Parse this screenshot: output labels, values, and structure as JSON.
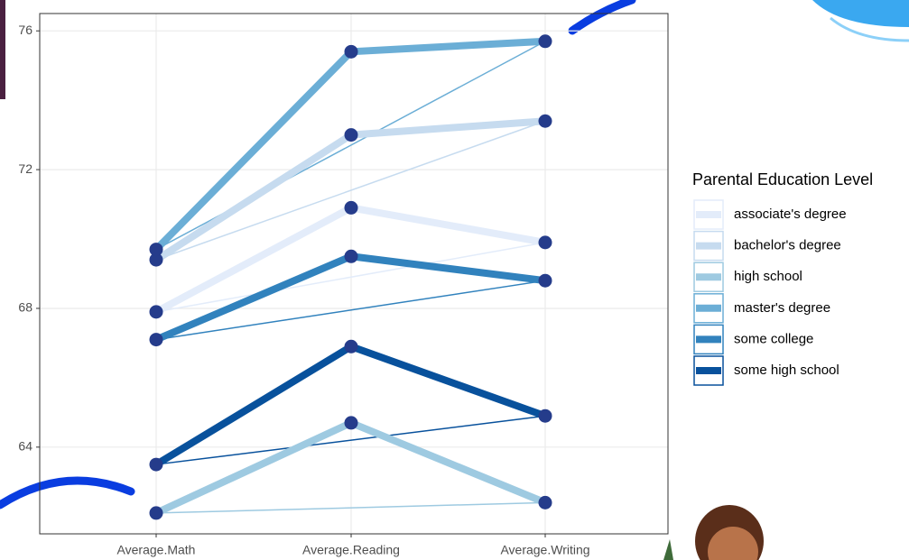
{
  "chart_data": {
    "type": "slope",
    "categories": [
      "Average.Math",
      "Average.Reading",
      "Average.Writing"
    ],
    "series": [
      {
        "name": "associate's degree",
        "color": "#e3ecfa",
        "values": [
          67.9,
          70.9,
          69.9
        ]
      },
      {
        "name": "bachelor's degree",
        "color": "#c6dbef",
        "values": [
          69.4,
          73.0,
          73.4
        ]
      },
      {
        "name": "high school",
        "color": "#9ecae1",
        "values": [
          62.1,
          64.7,
          62.4
        ]
      },
      {
        "name": "master's degree",
        "color": "#6baed6",
        "values": [
          69.7,
          75.4,
          75.7
        ]
      },
      {
        "name": "some college",
        "color": "#3182bd",
        "values": [
          67.1,
          69.5,
          68.8
        ]
      },
      {
        "name": "some high school",
        "color": "#08519c",
        "values": [
          63.5,
          66.9,
          64.9
        ]
      }
    ],
    "point_color": "#253c8b",
    "legend_title": "Parental Education Level",
    "ylim": [
      61.5,
      76.5
    ],
    "yticks": [
      64,
      68,
      72,
      76
    ],
    "grid": true
  }
}
